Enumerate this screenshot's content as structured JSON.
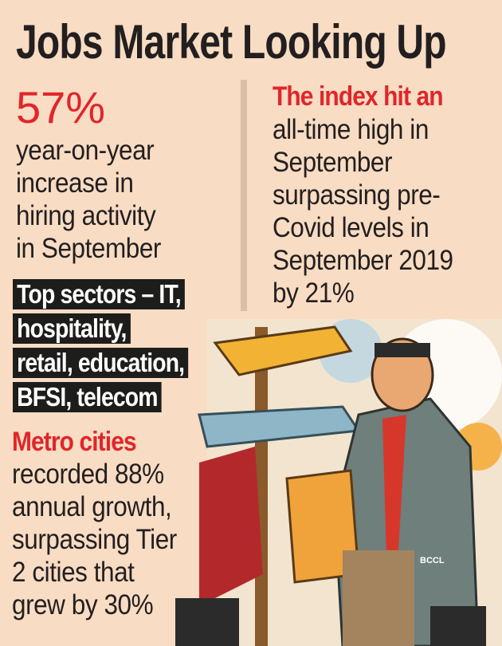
{
  "header": {
    "title": "Jobs Market Looking Up"
  },
  "left_stat": {
    "figure": "57%",
    "lines": [
      "year-on-year",
      "increase in",
      "hiring activity",
      "in September"
    ]
  },
  "right_stat": {
    "lead": "The index hit an",
    "lines": [
      "all-time high in",
      "September",
      "surpassing pre-",
      "Covid levels in",
      "September 2019",
      "by 21%"
    ]
  },
  "sectors": {
    "lines": [
      "Top sectors – IT,",
      "hospitality,",
      "retail, education,",
      "BFSI, telecom"
    ]
  },
  "metro": {
    "lead": "Metro cities",
    "lines": [
      "recorded 88%",
      "annual growth,",
      "surpassing Tier",
      "2 cities that",
      "grew by 30%"
    ]
  },
  "credit": "BCCL"
}
